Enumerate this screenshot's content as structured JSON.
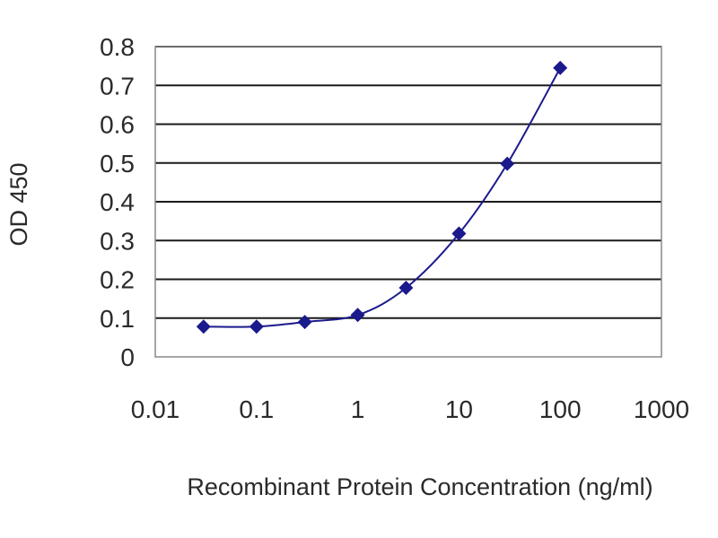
{
  "chart_data": {
    "type": "line",
    "title": "",
    "xlabel": "Recombinant Protein Concentration (ng/ml)",
    "ylabel": "OD 450",
    "x_scale": "log",
    "xlim": [
      0.01,
      1000
    ],
    "ylim": [
      0,
      0.8
    ],
    "x_ticks": [
      0.01,
      0.1,
      1,
      10,
      100,
      1000
    ],
    "x_tick_labels": [
      "0.01",
      "0.1",
      "1",
      "10",
      "100",
      "1000"
    ],
    "y_ticks": [
      0,
      0.1,
      0.2,
      0.3,
      0.4,
      0.5,
      0.6,
      0.7,
      0.8
    ],
    "y_tick_labels": [
      "0",
      "0.1",
      "0.2",
      "0.3",
      "0.4",
      "0.5",
      "0.6",
      "0.7",
      "0.8"
    ],
    "grid": "horizontal",
    "legend": "none",
    "series": [
      {
        "x": [
          0.03,
          0.1,
          0.3,
          1,
          3,
          10,
          30,
          100
        ],
        "y": [
          0.078,
          0.078,
          0.09,
          0.108,
          0.178,
          0.318,
          0.498,
          0.745
        ],
        "color": "#1a1a8c",
        "marker": "diamond"
      }
    ]
  }
}
